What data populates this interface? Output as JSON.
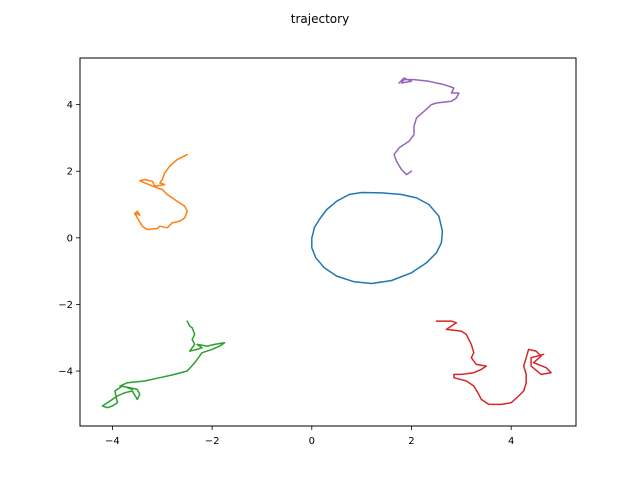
{
  "chart_data": {
    "type": "line",
    "title": "trajectory",
    "xlabel": "",
    "ylabel": "",
    "xlim": [
      -4.65,
      5.3
    ],
    "ylim": [
      -5.65,
      5.4
    ],
    "xticks": [
      -4,
      -2,
      0,
      2,
      4
    ],
    "yticks": [
      -4,
      -2,
      0,
      2,
      4
    ],
    "xtick_labels": [
      "−4",
      "−2",
      "0",
      "2",
      "4"
    ],
    "ytick_labels": [
      "−4",
      "−2",
      "0",
      "2",
      "4"
    ],
    "grid": false,
    "series": [
      {
        "color": "#1f77b4",
        "points": [
          [
            0.0,
            0.0
          ],
          [
            0.02,
            0.1
          ],
          [
            0.05,
            0.3
          ],
          [
            0.15,
            0.55
          ],
          [
            0.3,
            0.85
          ],
          [
            0.5,
            1.1
          ],
          [
            0.75,
            1.3
          ],
          [
            1.0,
            1.36
          ],
          [
            1.4,
            1.35
          ],
          [
            1.8,
            1.3
          ],
          [
            2.1,
            1.2
          ],
          [
            2.35,
            1.0
          ],
          [
            2.55,
            0.65
          ],
          [
            2.62,
            0.2
          ],
          [
            2.6,
            -0.15
          ],
          [
            2.5,
            -0.45
          ],
          [
            2.3,
            -0.75
          ],
          [
            2.0,
            -1.05
          ],
          [
            1.6,
            -1.28
          ],
          [
            1.2,
            -1.37
          ],
          [
            0.85,
            -1.32
          ],
          [
            0.5,
            -1.15
          ],
          [
            0.25,
            -0.9
          ],
          [
            0.08,
            -0.6
          ],
          [
            0.0,
            -0.3
          ],
          [
            0.0,
            0.0
          ]
        ]
      },
      {
        "color": "#ff7f0e",
        "points": [
          [
            -2.5,
            2.5
          ],
          [
            -2.7,
            2.35
          ],
          [
            -2.85,
            2.15
          ],
          [
            -2.95,
            1.95
          ],
          [
            -3.0,
            1.75
          ],
          [
            -3.05,
            1.65
          ],
          [
            -2.95,
            1.6
          ],
          [
            -3.15,
            1.55
          ],
          [
            -3.2,
            1.7
          ],
          [
            -3.35,
            1.75
          ],
          [
            -3.45,
            1.72
          ],
          [
            -3.35,
            1.65
          ],
          [
            -3.1,
            1.5
          ],
          [
            -3.0,
            1.45
          ],
          [
            -2.9,
            1.3
          ],
          [
            -2.8,
            1.2
          ],
          [
            -2.7,
            1.1
          ],
          [
            -2.6,
            1.0
          ],
          [
            -2.55,
            0.95
          ],
          [
            -2.5,
            0.8
          ],
          [
            -2.55,
            0.6
          ],
          [
            -2.65,
            0.5
          ],
          [
            -2.8,
            0.45
          ],
          [
            -2.9,
            0.3
          ],
          [
            -3.05,
            0.35
          ],
          [
            -3.1,
            0.28
          ],
          [
            -3.3,
            0.25
          ],
          [
            -3.4,
            0.35
          ],
          [
            -3.5,
            0.6
          ],
          [
            -3.55,
            0.75
          ],
          [
            -3.45,
            0.68
          ],
          [
            -3.5,
            0.8
          ],
          [
            -3.55,
            0.7
          ]
        ]
      },
      {
        "color": "#2ca02c",
        "points": [
          [
            -2.5,
            -2.5
          ],
          [
            -2.45,
            -2.65
          ],
          [
            -2.4,
            -2.7
          ],
          [
            -2.35,
            -2.9
          ],
          [
            -2.4,
            -3.05
          ],
          [
            -2.35,
            -3.2
          ],
          [
            -2.45,
            -3.4
          ],
          [
            -2.3,
            -3.35
          ],
          [
            -2.2,
            -3.3
          ],
          [
            -2.3,
            -3.2
          ],
          [
            -2.1,
            -3.25
          ],
          [
            -1.95,
            -3.2
          ],
          [
            -1.75,
            -3.15
          ],
          [
            -1.85,
            -3.25
          ],
          [
            -2.0,
            -3.35
          ],
          [
            -2.2,
            -3.45
          ],
          [
            -2.35,
            -3.75
          ],
          [
            -2.5,
            -4.0
          ],
          [
            -2.75,
            -4.1
          ],
          [
            -3.05,
            -4.2
          ],
          [
            -3.35,
            -4.3
          ],
          [
            -3.7,
            -4.35
          ],
          [
            -3.85,
            -4.45
          ],
          [
            -3.65,
            -4.5
          ],
          [
            -3.5,
            -4.55
          ],
          [
            -3.45,
            -4.7
          ],
          [
            -3.5,
            -4.85
          ],
          [
            -3.6,
            -4.6
          ],
          [
            -3.75,
            -4.65
          ],
          [
            -3.9,
            -4.75
          ],
          [
            -4.0,
            -4.85
          ],
          [
            -4.1,
            -4.95
          ],
          [
            -4.2,
            -5.05
          ],
          [
            -4.1,
            -5.1
          ],
          [
            -4.0,
            -5.05
          ],
          [
            -3.9,
            -4.95
          ],
          [
            -3.95,
            -4.6
          ],
          [
            -3.8,
            -4.45
          ],
          [
            -3.6,
            -4.55
          ]
        ]
      },
      {
        "color": "#d62728",
        "points": [
          [
            2.5,
            -2.5
          ],
          [
            2.8,
            -2.5
          ],
          [
            2.9,
            -2.55
          ],
          [
            2.7,
            -2.75
          ],
          [
            3.0,
            -2.8
          ],
          [
            3.1,
            -2.9
          ],
          [
            3.2,
            -3.2
          ],
          [
            3.25,
            -3.45
          ],
          [
            3.2,
            -3.6
          ],
          [
            3.3,
            -3.8
          ],
          [
            3.5,
            -3.85
          ],
          [
            3.4,
            -3.95
          ],
          [
            3.25,
            -4.05
          ],
          [
            3.0,
            -4.1
          ],
          [
            2.85,
            -4.1
          ],
          [
            2.85,
            -4.2
          ],
          [
            3.1,
            -4.3
          ],
          [
            3.25,
            -4.45
          ],
          [
            3.35,
            -4.7
          ],
          [
            3.4,
            -4.85
          ],
          [
            3.55,
            -5.0
          ],
          [
            3.8,
            -5.0
          ],
          [
            4.0,
            -4.95
          ],
          [
            4.15,
            -4.75
          ],
          [
            4.25,
            -4.6
          ],
          [
            4.3,
            -4.35
          ],
          [
            4.3,
            -4.1
          ],
          [
            4.25,
            -3.85
          ],
          [
            4.3,
            -3.6
          ],
          [
            4.35,
            -3.35
          ],
          [
            4.5,
            -3.4
          ],
          [
            4.6,
            -3.55
          ],
          [
            4.45,
            -3.75
          ],
          [
            4.7,
            -3.9
          ],
          [
            4.8,
            -4.05
          ],
          [
            4.6,
            -4.1
          ],
          [
            4.4,
            -3.85
          ],
          [
            4.4,
            -3.6
          ],
          [
            4.65,
            -3.5
          ]
        ]
      },
      {
        "color": "#9467bd",
        "points": [
          [
            2.0,
            2.0
          ],
          [
            1.9,
            1.9
          ],
          [
            1.8,
            2.05
          ],
          [
            1.7,
            2.3
          ],
          [
            1.65,
            2.5
          ],
          [
            1.75,
            2.7
          ],
          [
            1.95,
            2.9
          ],
          [
            2.05,
            3.1
          ],
          [
            2.05,
            3.35
          ],
          [
            2.1,
            3.6
          ],
          [
            2.25,
            3.8
          ],
          [
            2.4,
            4.0
          ],
          [
            2.5,
            4.05
          ],
          [
            2.8,
            4.1
          ],
          [
            2.9,
            4.2
          ],
          [
            2.95,
            4.35
          ],
          [
            2.8,
            4.35
          ],
          [
            2.85,
            4.5
          ],
          [
            2.65,
            4.6
          ],
          [
            2.35,
            4.7
          ],
          [
            2.05,
            4.75
          ],
          [
            1.85,
            4.75
          ],
          [
            1.8,
            4.65
          ],
          [
            2.0,
            4.7
          ],
          [
            1.85,
            4.8
          ],
          [
            1.75,
            4.65
          ]
        ]
      }
    ]
  }
}
